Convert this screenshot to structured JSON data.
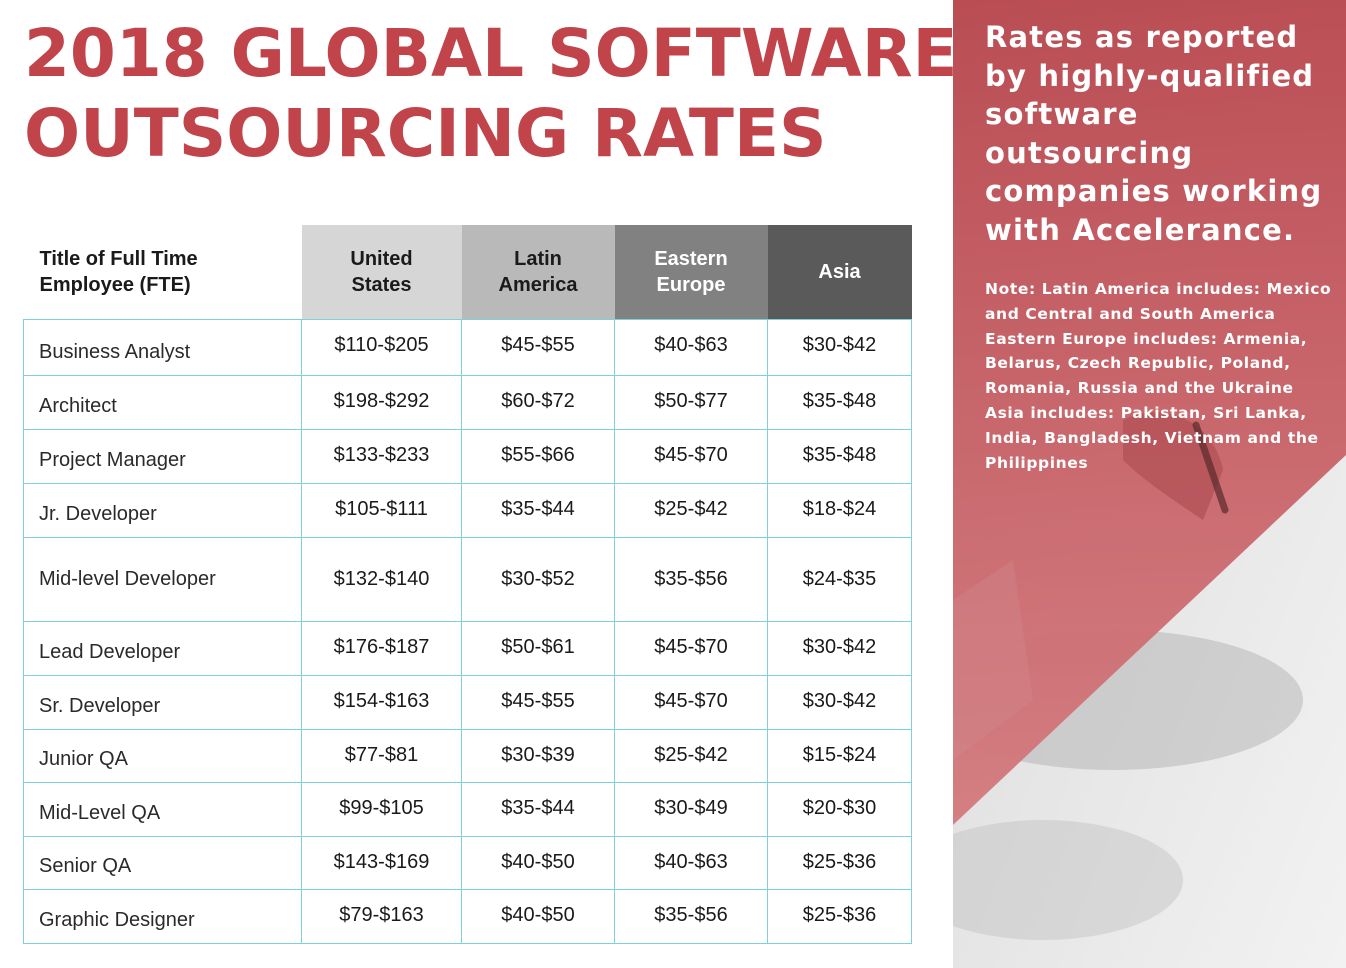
{
  "title": {
    "line1": "2018 GLOBAL SOFTWARE",
    "line2": "OUTSOURCING RATES"
  },
  "side": {
    "lead": "Rates as reported by highly-qualified software outsourcing companies working with Accelerance.",
    "note_lines": [
      "Note: Latin America includes: Mexico",
      "and Central and South America",
      "Eastern Europe includes: Armenia,",
      "Belarus, Czech Republic, Poland,",
      "Romania, Russia and the Ukraine",
      "Asia includes: Pakistan, Sri Lanka,",
      "India, Bangladesh, Vietnam and the",
      "Philippines"
    ],
    "colors": {
      "overlay": "#c25a60",
      "background": "#dedede"
    }
  },
  "table": {
    "headers": {
      "title_line1": "Title of Full Time",
      "title_line2": "Employee (FTE)",
      "us_line1": "United",
      "us_line2": "States",
      "la_line1": "Latin",
      "la_line2": "America",
      "ee_line1": "Eastern",
      "ee_line2": "Europe",
      "asia": "Asia"
    },
    "rows": [
      {
        "role": "Business Analyst",
        "us": "$110-$205",
        "la": "$45-$55",
        "ee": "$40-$63",
        "asia": "$30-$42"
      },
      {
        "role": "Architect",
        "us": "$198-$292",
        "la": "$60-$72",
        "ee": "$50-$77",
        "asia": "$35-$48"
      },
      {
        "role": "Project Manager",
        "us": "$133-$233",
        "la": "$55-$66",
        "ee": "$45-$70",
        "asia": "$35-$48"
      },
      {
        "role": "Jr. Developer",
        "us": "$105-$111",
        "la": "$35-$44",
        "ee": "$25-$42",
        "asia": "$18-$24"
      },
      {
        "role": "Mid-level Developer",
        "us": "$132-$140",
        "la": "$30-$52",
        "ee": "$35-$56",
        "asia": "$24-$35"
      },
      {
        "role": "Lead Developer",
        "us": "$176-$187",
        "la": "$50-$61",
        "ee": "$45-$70",
        "asia": "$30-$42"
      },
      {
        "role": "Sr. Developer",
        "us": "$154-$163",
        "la": "$45-$55",
        "ee": "$45-$70",
        "asia": "$30-$42"
      },
      {
        "role": "Junior QA",
        "us": "$77-$81",
        "la": "$30-$39",
        "ee": "$25-$42",
        "asia": "$15-$24"
      },
      {
        "role": "Mid-Level QA",
        "us": "$99-$105",
        "la": "$35-$44",
        "ee": "$30-$49",
        "asia": "$20-$30"
      },
      {
        "role": "Senior QA",
        "us": "$143-$169",
        "la": "$40-$50",
        "ee": "$40-$63",
        "asia": "$25-$36"
      },
      {
        "role": "Graphic Designer",
        "us": "$79-$163",
        "la": "$40-$50",
        "ee": "$35-$56",
        "asia": "$25-$36"
      }
    ]
  },
  "colors": {
    "title": "#c0444a",
    "table_border": "#7fd0d8"
  }
}
